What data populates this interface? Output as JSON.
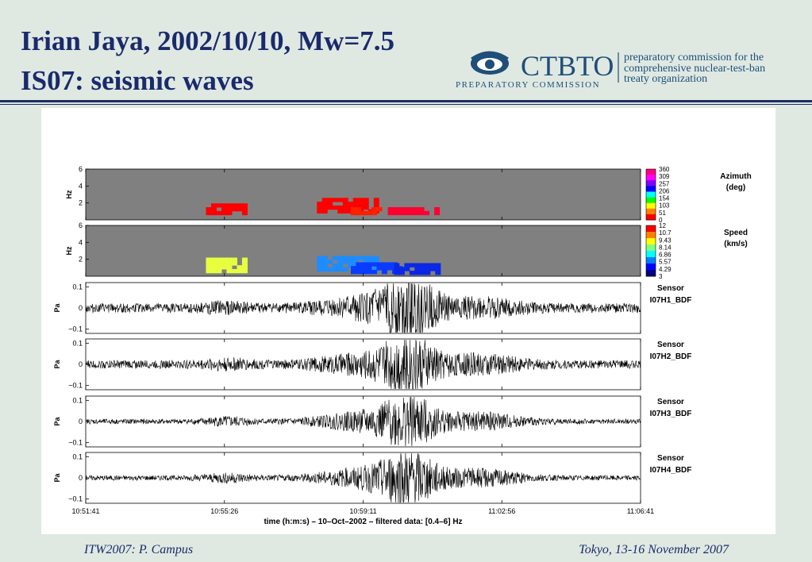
{
  "slide": {
    "title_line1": "Irian Jaya, 2002/10/10, Mw=7.5",
    "title_line2": "IS07: seismic waves",
    "footer_left": "ITW2007: P. Campus",
    "footer_right": "Tokyo, 13-16 November 2007"
  },
  "logo": {
    "name": "CTBTO",
    "subtitle": "PREPARATORY COMMISSION",
    "line1": "preparatory commission for the",
    "line2": "comprehensive nuclear-test-ban",
    "line3": "treaty organization",
    "color": "#1f4e79"
  },
  "chart_data": {
    "type": "heatmap",
    "xlabel": "time (h:m:s) – 10–Oct–2002 – filtered data: [0.4–6] Hz",
    "x_ticks": [
      "10:51:41",
      "10:55:26",
      "10:59:11",
      "11:02:56",
      "11:06:41"
    ],
    "x_tick_seconds": [
      0,
      225,
      450,
      675,
      900
    ],
    "panels": [
      {
        "kind": "spectrogram",
        "ylabel": "Hz",
        "yticks": [
          2,
          4,
          6
        ],
        "ylim": [
          0,
          6
        ],
        "colorbar_label": "Azimuth (deg)",
        "colorbar_ticks": [
          "360",
          "309",
          "257",
          "206",
          "154",
          "103",
          "51",
          "0"
        ],
        "colorbar_colors": [
          "#ff0080",
          "#ff00ff",
          "#8000ff",
          "#0000ff",
          "#00ffff",
          "#00ff00",
          "#ffff00",
          "#ff8000",
          "#ff0000"
        ],
        "background": "#808080",
        "clusters": [
          {
            "t_start": 195,
            "t_end": 260,
            "f_low": 0.6,
            "f_high": 1.9,
            "color": "#ff0000"
          },
          {
            "t_start": 375,
            "t_end": 470,
            "f_low": 0.8,
            "f_high": 2.4,
            "color": "#ff0000"
          },
          {
            "t_start": 430,
            "t_end": 480,
            "f_low": 0.6,
            "f_high": 1.4,
            "color": "#ff2000"
          },
          {
            "t_start": 490,
            "t_end": 570,
            "f_low": 0.6,
            "f_high": 1.3,
            "color": "#ff0030"
          }
        ]
      },
      {
        "kind": "spectrogram",
        "ylabel": "Hz",
        "yticks": [
          2,
          4,
          6
        ],
        "ylim": [
          0,
          6
        ],
        "colorbar_label": "Speed (km/s)",
        "colorbar_ticks": [
          "12",
          "10.7",
          "9.43",
          "8.14",
          "6.86",
          "5.57",
          "4.29",
          "3"
        ],
        "colorbar_colors": [
          "#ff0000",
          "#ff8000",
          "#ffff00",
          "#80ff80",
          "#00ffff",
          "#0080ff",
          "#0000ff",
          "#000080"
        ],
        "background": "#808080",
        "clusters": [
          {
            "t_start": 195,
            "t_end": 260,
            "f_low": 0.4,
            "f_high": 2.0,
            "color": "#e8ff40"
          },
          {
            "t_start": 375,
            "t_end": 470,
            "f_low": 0.6,
            "f_high": 2.4,
            "color": "#1e8cff"
          },
          {
            "t_start": 430,
            "t_end": 510,
            "f_low": 0.3,
            "f_high": 1.6,
            "color": "#0a3cff"
          },
          {
            "t_start": 500,
            "t_end": 575,
            "f_low": 0.2,
            "f_high": 1.2,
            "color": "#0a28e6"
          }
        ]
      },
      {
        "kind": "waveform",
        "ylabel": "Pa",
        "ylim": [
          -0.12,
          0.12
        ],
        "yticks": [
          "0.1",
          "0",
          "−0.1"
        ],
        "sensor_label": "Sensor",
        "sensor_name": "I07H1_BDF",
        "noise_amplitude": 0.022,
        "peak_amplitude": 0.11,
        "peak_time": 525
      },
      {
        "kind": "waveform",
        "ylabel": "Pa",
        "ylim": [
          -0.12,
          0.12
        ],
        "yticks": [
          "0.1",
          "0",
          "−0.1"
        ],
        "sensor_label": "Sensor",
        "sensor_name": "I07H2_BDF",
        "noise_amplitude": 0.02,
        "peak_amplitude": 0.1,
        "peak_time": 525
      },
      {
        "kind": "waveform",
        "ylabel": "Pa",
        "ylim": [
          -0.12,
          0.12
        ],
        "yticks": [
          "0.1",
          "0",
          "−0.1"
        ],
        "sensor_label": "Sensor",
        "sensor_name": "I07H3_BDF",
        "noise_amplitude": 0.012,
        "peak_amplitude": 0.09,
        "peak_time": 525
      },
      {
        "kind": "waveform",
        "ylabel": "Pa",
        "ylim": [
          -0.12,
          0.12
        ],
        "yticks": [
          "0.1",
          "0",
          "−0.1"
        ],
        "sensor_label": "Sensor",
        "sensor_name": "I07H4_BDF",
        "noise_amplitude": 0.012,
        "peak_amplitude": 0.1,
        "peak_time": 525
      }
    ]
  }
}
